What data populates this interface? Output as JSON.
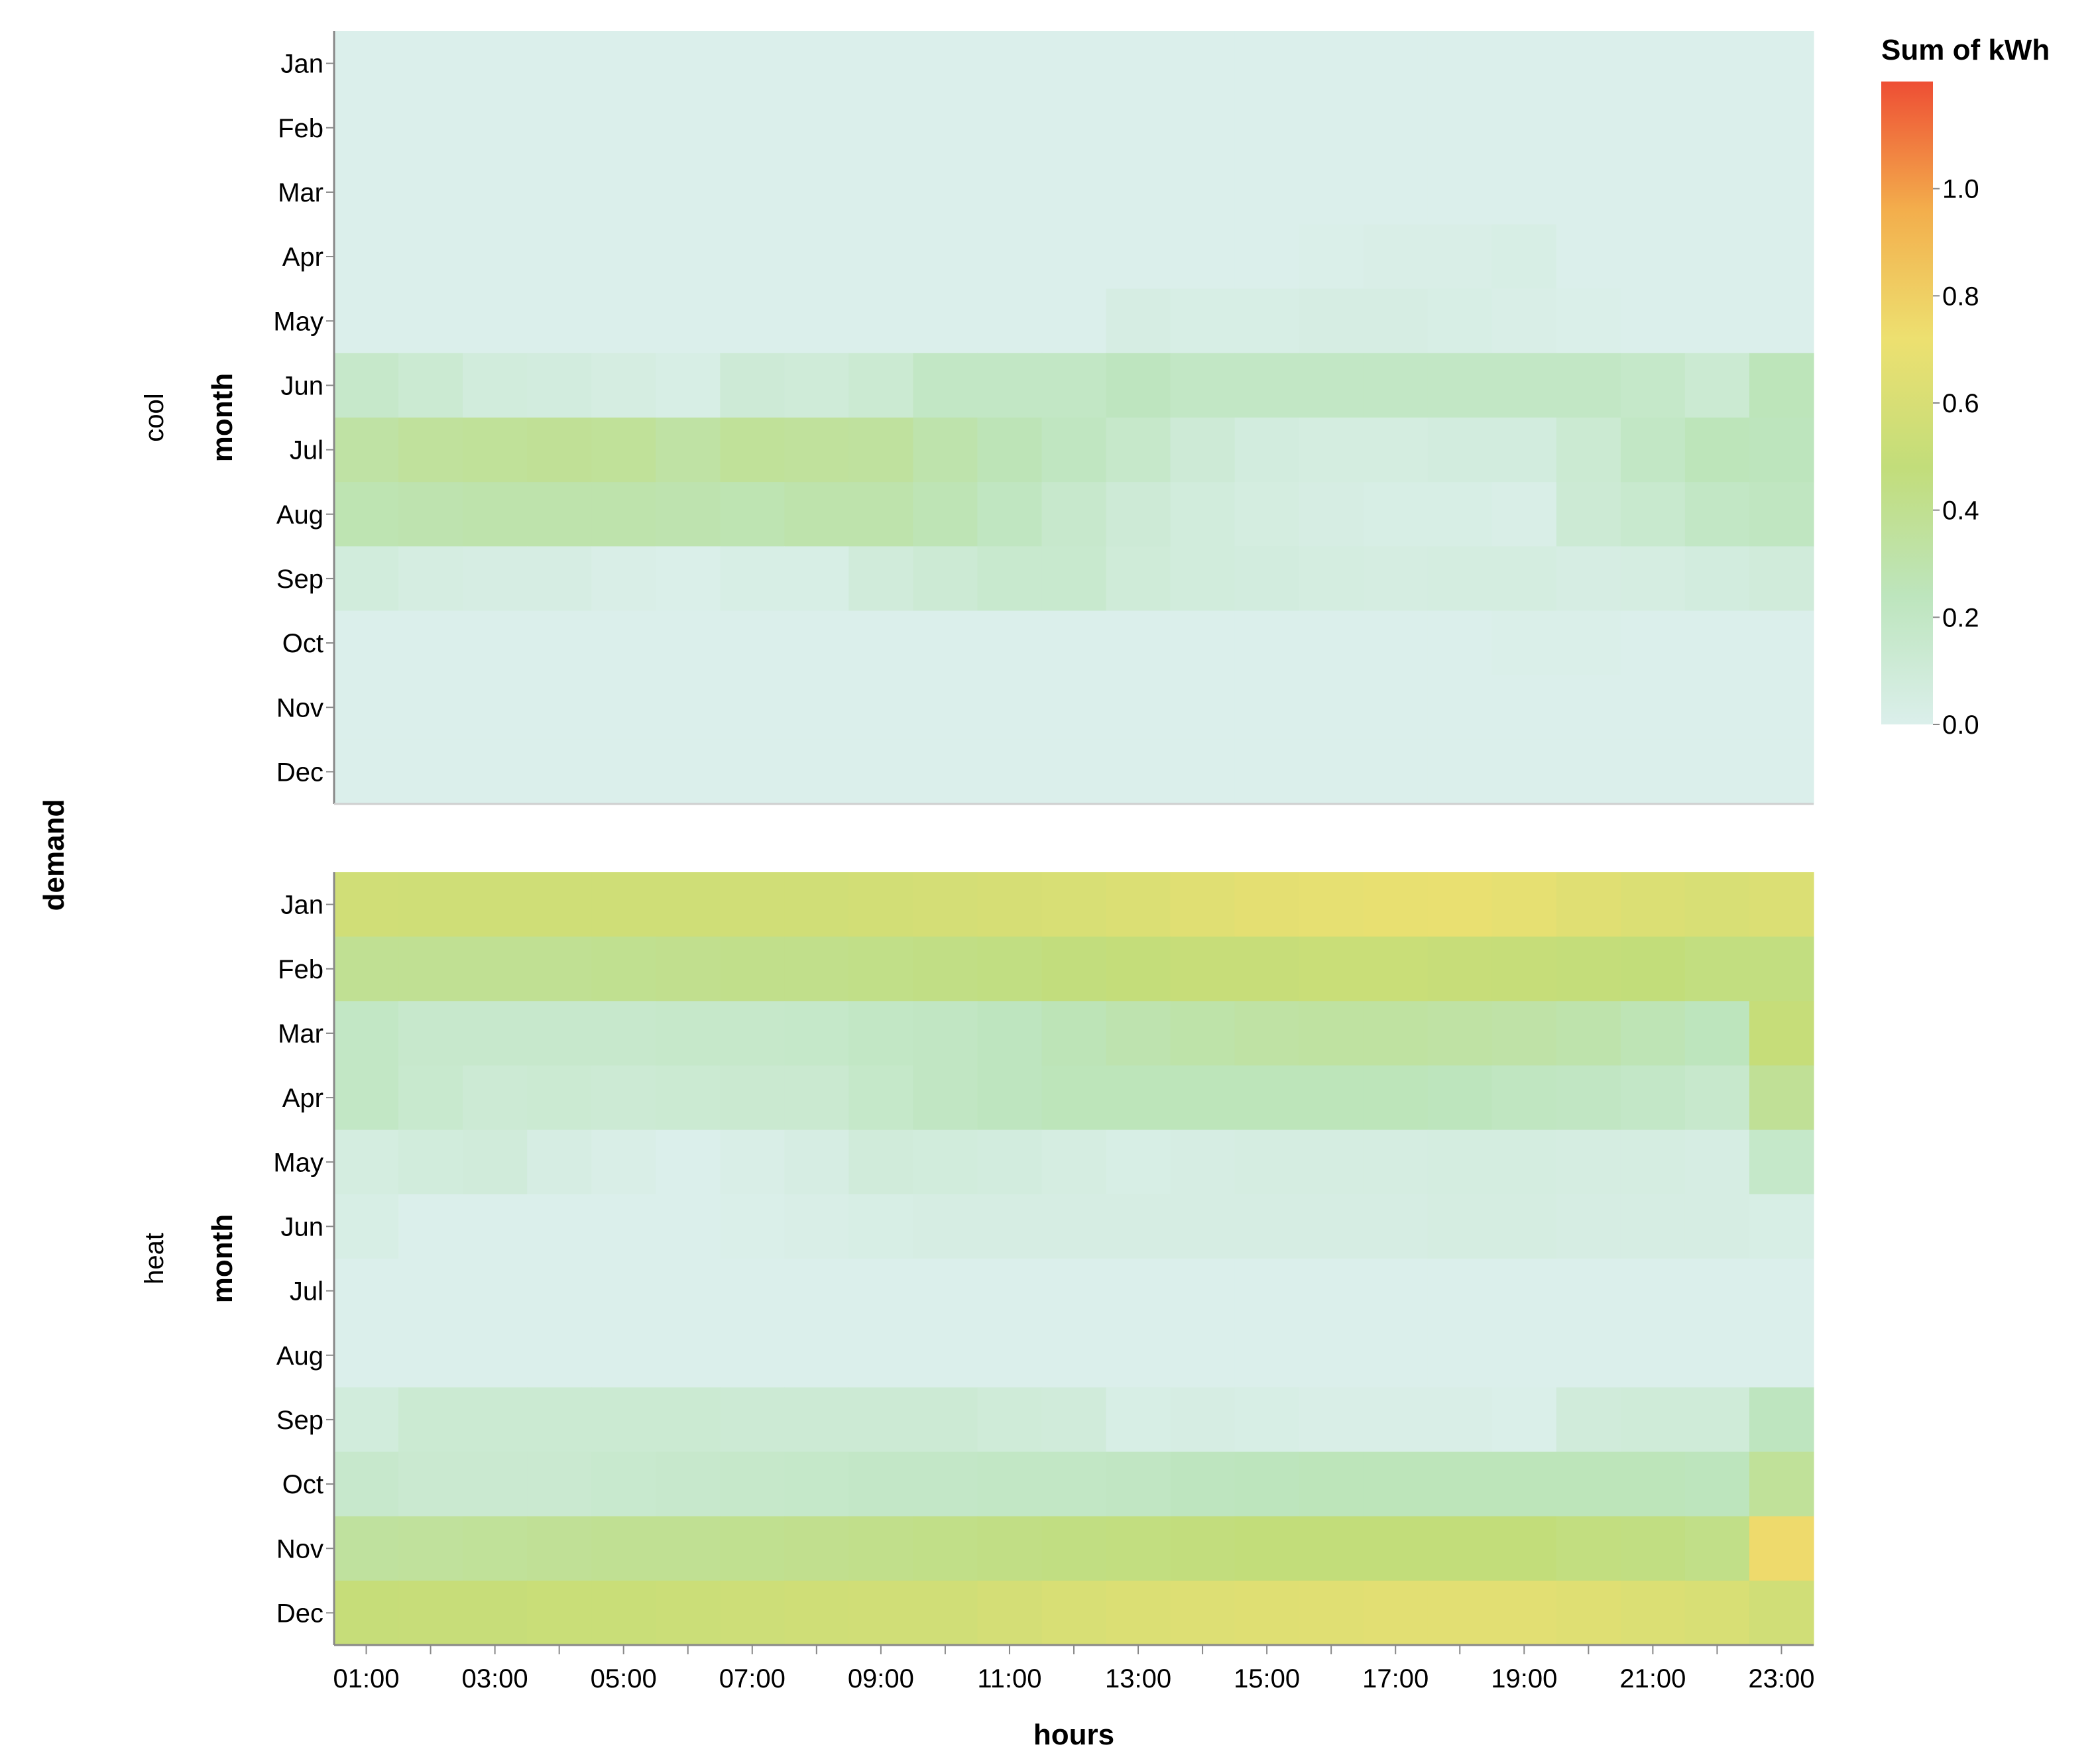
{
  "chart_data": {
    "type": "heatmap",
    "row_field_label": "demand",
    "y_field_label": "month",
    "x_field_label": "hours",
    "x_ticks": [
      "01:00",
      "03:00",
      "05:00",
      "07:00",
      "09:00",
      "11:00",
      "13:00",
      "15:00",
      "17:00",
      "19:00",
      "21:00",
      "23:00"
    ],
    "hours": [
      "01:00",
      "02:00",
      "03:00",
      "04:00",
      "05:00",
      "06:00",
      "07:00",
      "08:00",
      "09:00",
      "10:00",
      "11:00",
      "12:00",
      "13:00",
      "14:00",
      "15:00",
      "16:00",
      "17:00",
      "18:00",
      "19:00",
      "20:00",
      "21:00",
      "22:00",
      "23:00"
    ],
    "months": [
      "Jan",
      "Feb",
      "Mar",
      "Apr",
      "May",
      "Jun",
      "Jul",
      "Aug",
      "Sep",
      "Oct",
      "Nov",
      "Dec"
    ],
    "legend": {
      "title": "Sum of kWh",
      "ticks": [
        "0.0",
        "0.2",
        "0.4",
        "0.6",
        "0.8",
        "1.0"
      ],
      "domain": [
        0,
        1.2
      ],
      "colors": [
        "#dbefeb",
        "#bde5bd",
        "#c2dd7a",
        "#ede070",
        "#f3ae4c",
        "#ee4e34"
      ],
      "placement": "right"
    },
    "facets": [
      {
        "name": "cool",
        "values": [
          [
            0,
            0,
            0,
            0,
            0,
            0,
            0,
            0,
            0,
            0,
            0,
            0,
            0,
            0,
            0,
            0,
            0,
            0,
            0,
            0,
            0,
            0,
            0
          ],
          [
            0,
            0,
            0,
            0,
            0,
            0,
            0,
            0,
            0,
            0,
            0,
            0,
            0,
            0,
            0,
            0,
            0,
            0,
            0,
            0,
            0,
            0,
            0
          ],
          [
            0,
            0,
            0,
            0,
            0,
            0,
            0,
            0,
            0,
            0,
            0,
            0,
            0,
            0,
            0,
            0,
            0,
            0,
            0,
            0,
            0,
            0,
            0
          ],
          [
            0,
            0,
            0,
            0,
            0,
            0,
            0,
            0,
            0,
            0,
            0,
            0,
            0,
            0,
            0,
            0.01,
            0.02,
            0.02,
            0.03,
            0,
            0,
            0,
            0
          ],
          [
            0,
            0,
            0,
            0,
            0,
            0,
            0,
            0,
            0,
            0,
            0,
            0,
            0.04,
            0.03,
            0.03,
            0.04,
            0.04,
            0.03,
            0.02,
            0.01,
            0,
            0,
            0
          ],
          [
            0.17,
            0.13,
            0.08,
            0.07,
            0.05,
            0.03,
            0.11,
            0.1,
            0.13,
            0.2,
            0.2,
            0.2,
            0.23,
            0.2,
            0.2,
            0.2,
            0.2,
            0.2,
            0.2,
            0.2,
            0.18,
            0.13,
            0.25
          ],
          [
            0.33,
            0.36,
            0.37,
            0.38,
            0.37,
            0.33,
            0.37,
            0.36,
            0.35,
            0.3,
            0.26,
            0.22,
            0.17,
            0.11,
            0.07,
            0.06,
            0.06,
            0.07,
            0.07,
            0.13,
            0.2,
            0.25,
            0.24
          ],
          [
            0.28,
            0.29,
            0.3,
            0.3,
            0.3,
            0.29,
            0.28,
            0.3,
            0.3,
            0.27,
            0.22,
            0.16,
            0.11,
            0.08,
            0.06,
            0.04,
            0.03,
            0.03,
            0.02,
            0.12,
            0.15,
            0.2,
            0.22
          ],
          [
            0.08,
            0.05,
            0.04,
            0.04,
            0.02,
            0.01,
            0.03,
            0.03,
            0.09,
            0.12,
            0.15,
            0.15,
            0.1,
            0.08,
            0.07,
            0.06,
            0.05,
            0.06,
            0.06,
            0.04,
            0.05,
            0.07,
            0.09
          ],
          [
            0,
            0,
            0,
            0,
            0,
            0,
            0,
            0,
            0,
            0,
            0,
            0,
            0,
            0,
            0,
            0,
            0,
            0,
            0.01,
            0.01,
            0,
            0,
            0
          ],
          [
            0,
            0,
            0,
            0,
            0,
            0,
            0,
            0,
            0,
            0,
            0,
            0,
            0,
            0,
            0,
            0,
            0,
            0,
            0,
            0,
            0,
            0,
            0
          ],
          [
            0,
            0,
            0,
            0,
            0,
            0,
            0,
            0,
            0,
            0,
            0,
            0,
            0,
            0,
            0,
            0,
            0,
            0,
            0,
            0,
            0,
            0,
            0
          ]
        ]
      },
      {
        "name": "heat",
        "values": [
          [
            0.56,
            0.55,
            0.55,
            0.55,
            0.55,
            0.55,
            0.56,
            0.56,
            0.57,
            0.58,
            0.59,
            0.6,
            0.62,
            0.65,
            0.67,
            0.68,
            0.69,
            0.7,
            0.68,
            0.65,
            0.62,
            0.6,
            0.62
          ],
          [
            0.39,
            0.39,
            0.39,
            0.39,
            0.4,
            0.41,
            0.42,
            0.42,
            0.43,
            0.44,
            0.45,
            0.47,
            0.49,
            0.51,
            0.51,
            0.52,
            0.52,
            0.51,
            0.5,
            0.49,
            0.48,
            0.46,
            0.46
          ],
          [
            0.2,
            0.16,
            0.16,
            0.16,
            0.16,
            0.17,
            0.17,
            0.18,
            0.2,
            0.21,
            0.23,
            0.26,
            0.29,
            0.31,
            0.33,
            0.34,
            0.34,
            0.33,
            0.32,
            0.3,
            0.27,
            0.24,
            0.5
          ],
          [
            0.2,
            0.15,
            0.12,
            0.13,
            0.12,
            0.13,
            0.14,
            0.14,
            0.18,
            0.21,
            0.23,
            0.25,
            0.25,
            0.25,
            0.25,
            0.25,
            0.25,
            0.24,
            0.22,
            0.21,
            0.19,
            0.16,
            0.38
          ],
          [
            0.06,
            0.08,
            0.09,
            0.04,
            0.02,
            -0.01,
            0.02,
            0.04,
            0.09,
            0.08,
            0.07,
            0.05,
            0.03,
            0.04,
            0.05,
            0.05,
            0.05,
            0.06,
            0.06,
            0.05,
            0.05,
            0.04,
            0.18
          ],
          [
            0.03,
            0,
            0,
            0,
            -0.01,
            0,
            0.01,
            0.02,
            0.03,
            0.04,
            0.04,
            0.04,
            0.04,
            0.04,
            0.04,
            0.04,
            0.04,
            0.05,
            0.05,
            0.04,
            0.04,
            0.04,
            0.03
          ],
          [
            0,
            0,
            0,
            0,
            0,
            0,
            0,
            0,
            0,
            0,
            0,
            0,
            0,
            0,
            0,
            0,
            0,
            0,
            0,
            0,
            0,
            0,
            0
          ],
          [
            0,
            0,
            0,
            0,
            0,
            0,
            0,
            0,
            0,
            0,
            0,
            0,
            0,
            0,
            0,
            0,
            0,
            0,
            0,
            0,
            0,
            0,
            0
          ],
          [
            0.08,
            0.13,
            0.13,
            0.13,
            0.13,
            0.13,
            0.12,
            0.12,
            0.12,
            0.12,
            0.1,
            0.09,
            0.03,
            0.04,
            0.03,
            0.02,
            0.02,
            0.02,
            0.01,
            0.09,
            0.1,
            0.1,
            0.23
          ],
          [
            0.16,
            0.14,
            0.14,
            0.14,
            0.15,
            0.16,
            0.17,
            0.18,
            0.19,
            0.19,
            0.2,
            0.2,
            0.21,
            0.23,
            0.24,
            0.25,
            0.25,
            0.25,
            0.25,
            0.25,
            0.25,
            0.24,
            0.37
          ],
          [
            0.35,
            0.36,
            0.37,
            0.38,
            0.39,
            0.39,
            0.4,
            0.41,
            0.42,
            0.43,
            0.44,
            0.45,
            0.46,
            0.47,
            0.48,
            0.48,
            0.48,
            0.48,
            0.48,
            0.46,
            0.45,
            0.43,
            0.75
          ],
          [
            0.5,
            0.51,
            0.51,
            0.52,
            0.52,
            0.53,
            0.54,
            0.55,
            0.56,
            0.56,
            0.58,
            0.6,
            0.62,
            0.63,
            0.64,
            0.65,
            0.66,
            0.66,
            0.66,
            0.64,
            0.62,
            0.6,
            0.56
          ]
        ]
      }
    ]
  }
}
